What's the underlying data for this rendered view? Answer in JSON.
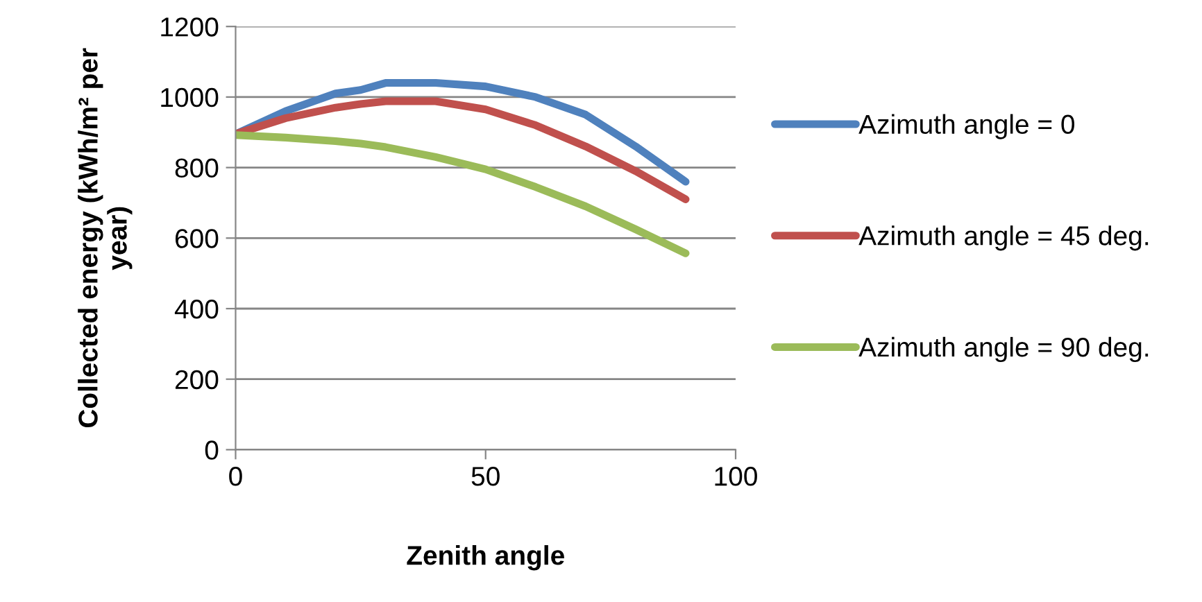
{
  "chart_data": {
    "type": "line",
    "xlabel": "Zenith angle",
    "ylabel": "Collected energy (kWh/m² per\nyear)",
    "x": [
      0,
      10,
      20,
      25,
      30,
      40,
      50,
      60,
      70,
      80,
      90
    ],
    "series": [
      {
        "name": "Azimuth angle = 0",
        "color": "#4f81bd",
        "values": [
          895,
          960,
          1010,
          1020,
          1040,
          1040,
          1030,
          1000,
          950,
          860,
          760
        ]
      },
      {
        "name": "Azimuth angle = 45 deg.",
        "color": "#c0504d",
        "values": [
          895,
          940,
          970,
          980,
          988,
          988,
          965,
          920,
          860,
          790,
          710
        ]
      },
      {
        "name": "Azimuth angle = 90 deg.",
        "color": "#9bbb59",
        "values": [
          892,
          885,
          875,
          868,
          858,
          830,
          795,
          745,
          690,
          625,
          557
        ]
      }
    ],
    "xlim": [
      0,
      100
    ],
    "xticks": [
      0,
      50,
      100
    ],
    "ylim": [
      0,
      1200
    ],
    "yticks": [
      0,
      200,
      400,
      600,
      800,
      1000,
      1200
    ],
    "grid": "y",
    "legend": "right",
    "marker": "none",
    "line_style": "solid"
  }
}
